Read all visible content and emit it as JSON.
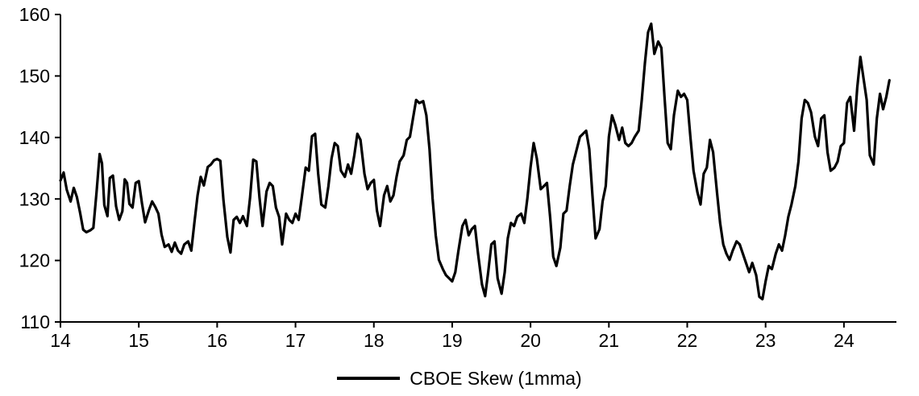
{
  "chart_data": {
    "type": "line",
    "title": "",
    "xlabel": "",
    "ylabel": "",
    "xlim": [
      14,
      24.67
    ],
    "ylim": [
      110,
      160
    ],
    "x_ticks": [
      14,
      15,
      16,
      17,
      18,
      19,
      20,
      21,
      22,
      23,
      24
    ],
    "y_ticks": [
      110,
      120,
      130,
      140,
      150,
      160
    ],
    "grid": false,
    "legend_position": "bottom",
    "line_color": "#000000",
    "series": [
      {
        "name": "CBOE Skew (1mma)",
        "color": "#000000",
        "points": [
          [
            14.0,
            133.0
          ],
          [
            14.04,
            134.3
          ],
          [
            14.08,
            131.5
          ],
          [
            14.13,
            129.6
          ],
          [
            14.17,
            131.8
          ],
          [
            14.21,
            130.3
          ],
          [
            14.25,
            127.8
          ],
          [
            14.29,
            125.0
          ],
          [
            14.33,
            124.6
          ],
          [
            14.38,
            124.9
          ],
          [
            14.42,
            125.3
          ],
          [
            14.46,
            131.0
          ],
          [
            14.5,
            137.3
          ],
          [
            14.53,
            135.8
          ],
          [
            14.56,
            129.0
          ],
          [
            14.6,
            127.2
          ],
          [
            14.63,
            133.4
          ],
          [
            14.67,
            133.8
          ],
          [
            14.71,
            128.8
          ],
          [
            14.75,
            126.6
          ],
          [
            14.79,
            128.0
          ],
          [
            14.82,
            133.2
          ],
          [
            14.85,
            132.6
          ],
          [
            14.88,
            129.2
          ],
          [
            14.92,
            128.6
          ],
          [
            14.96,
            132.6
          ],
          [
            15.0,
            132.9
          ],
          [
            15.04,
            129.3
          ],
          [
            15.08,
            126.2
          ],
          [
            15.13,
            128.2
          ],
          [
            15.17,
            129.6
          ],
          [
            15.21,
            128.7
          ],
          [
            15.25,
            127.6
          ],
          [
            15.29,
            124.2
          ],
          [
            15.33,
            122.2
          ],
          [
            15.38,
            122.6
          ],
          [
            15.42,
            121.4
          ],
          [
            15.46,
            122.9
          ],
          [
            15.5,
            121.6
          ],
          [
            15.54,
            121.1
          ],
          [
            15.58,
            122.6
          ],
          [
            15.63,
            123.1
          ],
          [
            15.67,
            121.6
          ],
          [
            15.71,
            126.2
          ],
          [
            15.75,
            130.6
          ],
          [
            15.79,
            133.6
          ],
          [
            15.83,
            132.2
          ],
          [
            15.88,
            135.2
          ],
          [
            15.92,
            135.6
          ],
          [
            15.96,
            136.3
          ],
          [
            16.0,
            136.5
          ],
          [
            16.04,
            136.2
          ],
          [
            16.08,
            129.8
          ],
          [
            16.13,
            123.8
          ],
          [
            16.17,
            121.3
          ],
          [
            16.21,
            126.6
          ],
          [
            16.25,
            127.1
          ],
          [
            16.29,
            126.1
          ],
          [
            16.33,
            127.2
          ],
          [
            16.38,
            125.6
          ],
          [
            16.42,
            130.2
          ],
          [
            16.46,
            136.4
          ],
          [
            16.5,
            136.1
          ],
          [
            16.54,
            130.2
          ],
          [
            16.58,
            125.6
          ],
          [
            16.63,
            131.2
          ],
          [
            16.67,
            132.6
          ],
          [
            16.71,
            132.1
          ],
          [
            16.75,
            128.6
          ],
          [
            16.79,
            127.1
          ],
          [
            16.83,
            122.6
          ],
          [
            16.88,
            127.6
          ],
          [
            16.92,
            126.6
          ],
          [
            16.96,
            126.1
          ],
          [
            17.0,
            127.6
          ],
          [
            17.04,
            126.6
          ],
          [
            17.08,
            130.2
          ],
          [
            17.13,
            135.1
          ],
          [
            17.17,
            134.6
          ],
          [
            17.21,
            140.2
          ],
          [
            17.25,
            140.6
          ],
          [
            17.29,
            134.1
          ],
          [
            17.33,
            129.1
          ],
          [
            17.38,
            128.6
          ],
          [
            17.42,
            132.1
          ],
          [
            17.46,
            136.6
          ],
          [
            17.5,
            139.1
          ],
          [
            17.54,
            138.6
          ],
          [
            17.58,
            134.6
          ],
          [
            17.63,
            133.6
          ],
          [
            17.67,
            135.6
          ],
          [
            17.71,
            134.1
          ],
          [
            17.75,
            137.1
          ],
          [
            17.79,
            140.6
          ],
          [
            17.83,
            139.6
          ],
          [
            17.88,
            134.1
          ],
          [
            17.92,
            131.6
          ],
          [
            17.96,
            132.6
          ],
          [
            18.0,
            133.1
          ],
          [
            18.04,
            128.1
          ],
          [
            18.08,
            125.6
          ],
          [
            18.13,
            130.6
          ],
          [
            18.17,
            132.1
          ],
          [
            18.21,
            129.6
          ],
          [
            18.25,
            130.6
          ],
          [
            18.29,
            133.6
          ],
          [
            18.33,
            136.1
          ],
          [
            18.38,
            137.1
          ],
          [
            18.42,
            139.6
          ],
          [
            18.46,
            140.1
          ],
          [
            18.5,
            143.1
          ],
          [
            18.54,
            146.1
          ],
          [
            18.58,
            145.6
          ],
          [
            18.63,
            145.9
          ],
          [
            18.67,
            143.6
          ],
          [
            18.71,
            138.1
          ],
          [
            18.75,
            130.1
          ],
          [
            18.79,
            124.1
          ],
          [
            18.83,
            120.1
          ],
          [
            18.88,
            118.6
          ],
          [
            18.92,
            117.6
          ],
          [
            18.96,
            117.1
          ],
          [
            19.0,
            116.6
          ],
          [
            19.04,
            118.1
          ],
          [
            19.08,
            121.6
          ],
          [
            19.13,
            125.6
          ],
          [
            19.17,
            126.6
          ],
          [
            19.21,
            124.1
          ],
          [
            19.25,
            125.1
          ],
          [
            19.29,
            125.6
          ],
          [
            19.33,
            121.1
          ],
          [
            19.38,
            116.1
          ],
          [
            19.42,
            114.2
          ],
          [
            19.46,
            118.1
          ],
          [
            19.5,
            122.6
          ],
          [
            19.54,
            123.1
          ],
          [
            19.58,
            117.1
          ],
          [
            19.63,
            114.6
          ],
          [
            19.67,
            118.1
          ],
          [
            19.71,
            123.6
          ],
          [
            19.75,
            126.1
          ],
          [
            19.79,
            125.6
          ],
          [
            19.83,
            127.1
          ],
          [
            19.88,
            127.6
          ],
          [
            19.92,
            126.1
          ],
          [
            19.96,
            130.1
          ],
          [
            20.0,
            135.1
          ],
          [
            20.04,
            139.1
          ],
          [
            20.08,
            136.6
          ],
          [
            20.13,
            131.6
          ],
          [
            20.17,
            132.1
          ],
          [
            20.21,
            132.6
          ],
          [
            20.25,
            127.1
          ],
          [
            20.29,
            120.6
          ],
          [
            20.33,
            119.1
          ],
          [
            20.38,
            122.1
          ],
          [
            20.42,
            127.6
          ],
          [
            20.46,
            128.1
          ],
          [
            20.5,
            132.1
          ],
          [
            20.54,
            135.6
          ],
          [
            20.58,
            137.6
          ],
          [
            20.63,
            140.1
          ],
          [
            20.67,
            140.6
          ],
          [
            20.71,
            141.1
          ],
          [
            20.75,
            138.1
          ],
          [
            20.79,
            130.6
          ],
          [
            20.83,
            123.6
          ],
          [
            20.88,
            125.1
          ],
          [
            20.92,
            129.6
          ],
          [
            20.96,
            132.1
          ],
          [
            21.0,
            140.1
          ],
          [
            21.04,
            143.6
          ],
          [
            21.08,
            142.1
          ],
          [
            21.13,
            139.6
          ],
          [
            21.17,
            141.6
          ],
          [
            21.21,
            139.1
          ],
          [
            21.25,
            138.6
          ],
          [
            21.29,
            139.1
          ],
          [
            21.33,
            140.1
          ],
          [
            21.38,
            141.1
          ],
          [
            21.42,
            146.1
          ],
          [
            21.46,
            152.1
          ],
          [
            21.5,
            157.1
          ],
          [
            21.54,
            158.5
          ],
          [
            21.58,
            153.6
          ],
          [
            21.63,
            155.6
          ],
          [
            21.67,
            154.6
          ],
          [
            21.71,
            146.6
          ],
          [
            21.75,
            139.1
          ],
          [
            21.79,
            138.1
          ],
          [
            21.83,
            143.6
          ],
          [
            21.88,
            147.6
          ],
          [
            21.92,
            146.6
          ],
          [
            21.96,
            147.1
          ],
          [
            22.0,
            146.1
          ],
          [
            22.04,
            140.1
          ],
          [
            22.08,
            134.6
          ],
          [
            22.13,
            131.1
          ],
          [
            22.17,
            129.1
          ],
          [
            22.21,
            134.1
          ],
          [
            22.25,
            135.1
          ],
          [
            22.29,
            139.6
          ],
          [
            22.33,
            137.6
          ],
          [
            22.38,
            131.1
          ],
          [
            22.42,
            126.1
          ],
          [
            22.46,
            122.6
          ],
          [
            22.5,
            121.1
          ],
          [
            22.54,
            120.1
          ],
          [
            22.58,
            121.6
          ],
          [
            22.63,
            123.1
          ],
          [
            22.67,
            122.6
          ],
          [
            22.71,
            121.1
          ],
          [
            22.75,
            119.6
          ],
          [
            22.79,
            118.1
          ],
          [
            22.83,
            119.6
          ],
          [
            22.88,
            117.6
          ],
          [
            22.92,
            114.1
          ],
          [
            22.96,
            113.7
          ],
          [
            23.0,
            116.6
          ],
          [
            23.04,
            119.1
          ],
          [
            23.08,
            118.6
          ],
          [
            23.13,
            121.1
          ],
          [
            23.17,
            122.6
          ],
          [
            23.21,
            121.6
          ],
          [
            23.25,
            124.1
          ],
          [
            23.29,
            127.1
          ],
          [
            23.33,
            129.1
          ],
          [
            23.38,
            132.1
          ],
          [
            23.42,
            136.1
          ],
          [
            23.46,
            143.1
          ],
          [
            23.5,
            146.1
          ],
          [
            23.54,
            145.6
          ],
          [
            23.58,
            144.1
          ],
          [
            23.63,
            140.1
          ],
          [
            23.67,
            138.6
          ],
          [
            23.71,
            143.1
          ],
          [
            23.75,
            143.6
          ],
          [
            23.79,
            137.6
          ],
          [
            23.83,
            134.6
          ],
          [
            23.88,
            135.1
          ],
          [
            23.92,
            136.1
          ],
          [
            23.96,
            138.6
          ],
          [
            24.0,
            139.1
          ],
          [
            24.04,
            145.6
          ],
          [
            24.08,
            146.6
          ],
          [
            24.13,
            141.1
          ],
          [
            24.17,
            148.1
          ],
          [
            24.21,
            153.1
          ],
          [
            24.25,
            149.6
          ],
          [
            24.29,
            146.1
          ],
          [
            24.33,
            137.1
          ],
          [
            24.38,
            135.6
          ],
          [
            24.42,
            143.1
          ],
          [
            24.46,
            147.1
          ],
          [
            24.5,
            144.6
          ],
          [
            24.54,
            146.6
          ],
          [
            24.58,
            149.3
          ]
        ]
      }
    ]
  },
  "legend": {
    "label": "CBOE Skew (1mma)"
  }
}
